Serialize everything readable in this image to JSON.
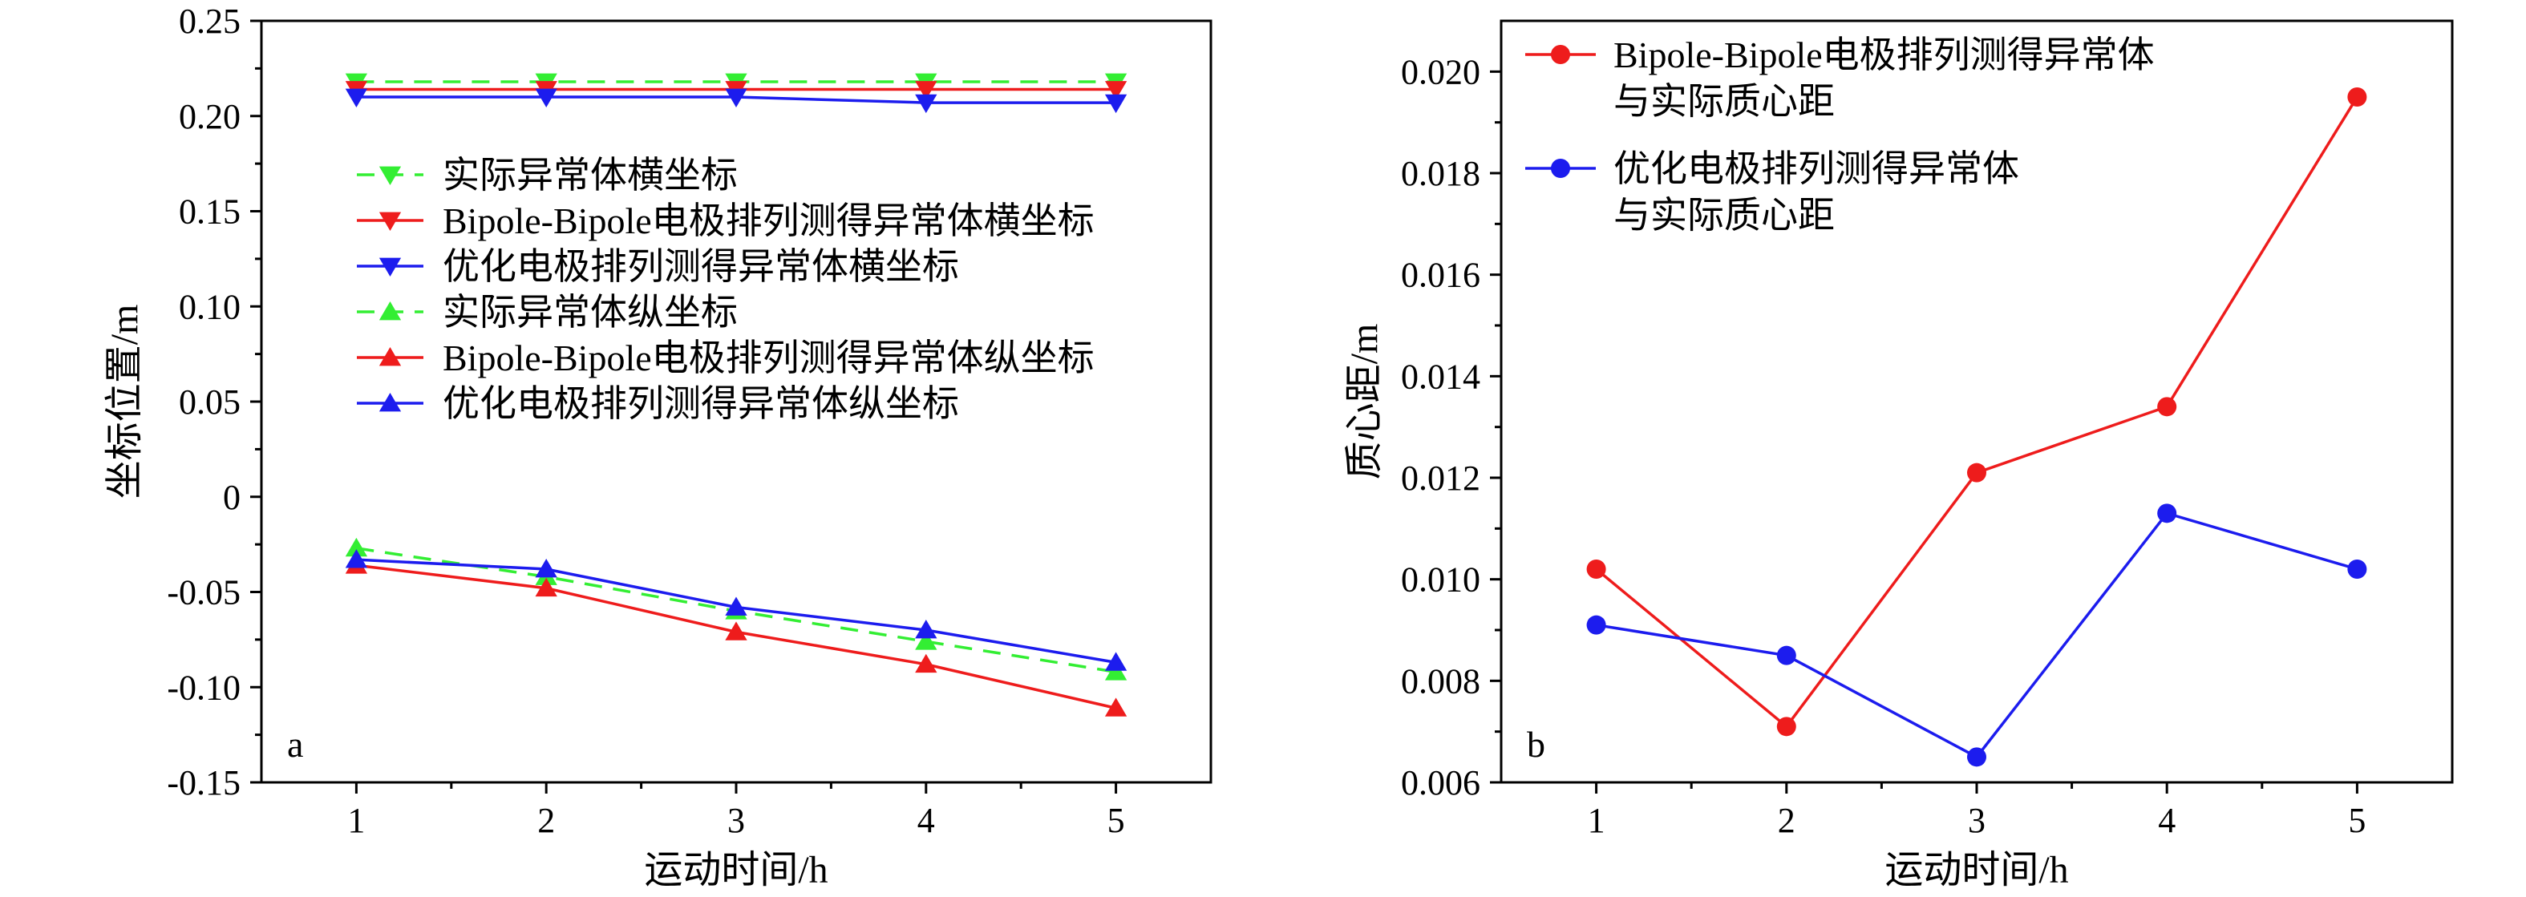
{
  "chart_data": [
    {
      "type": "line",
      "panel_label": "a",
      "xlabel": "运动时间/h",
      "ylabel": "坐标位置/m",
      "x": [
        1,
        2,
        3,
        4,
        5
      ],
      "xlim": [
        0.5,
        5.5
      ],
      "ylim": [
        -0.15,
        0.25
      ],
      "xticks": [
        "1",
        "2",
        "3",
        "4",
        "5"
      ],
      "yticks": [
        {
          "value": 0.25,
          "label": "0.25"
        },
        {
          "value": 0.2,
          "label": "0.20"
        },
        {
          "value": 0.15,
          "label": "0.15"
        },
        {
          "value": 0.1,
          "label": "0.10"
        },
        {
          "value": 0.05,
          "label": "0.05"
        },
        {
          "value": 0.0,
          "label": "0"
        },
        {
          "value": -0.05,
          "label": "-0.05"
        },
        {
          "value": -0.1,
          "label": "-0.10"
        },
        {
          "value": -0.15,
          "label": "-0.15"
        }
      ],
      "grid": false,
      "legend_position": "upper-middle",
      "series": [
        {
          "name": "实际异常体横坐标",
          "color": "#33ee33",
          "dash": true,
          "marker": "triangle-down",
          "values": [
            0.218,
            0.218,
            0.218,
            0.218,
            0.218
          ]
        },
        {
          "name": "Bipole-Bipole电极排列测得异常体横坐标",
          "color": "#ee1c1c",
          "dash": false,
          "marker": "triangle-down",
          "values": [
            0.214,
            0.214,
            0.214,
            0.214,
            0.214
          ]
        },
        {
          "name": "优化电极排列测得异常体横坐标",
          "color": "#1c1cee",
          "dash": false,
          "marker": "triangle-down",
          "values": [
            0.21,
            0.21,
            0.21,
            0.207,
            0.207
          ]
        },
        {
          "name": "实际异常体纵坐标",
          "color": "#33ee33",
          "dash": true,
          "marker": "triangle-up",
          "values": [
            -0.027,
            -0.042,
            -0.06,
            -0.076,
            -0.092
          ]
        },
        {
          "name": "Bipole-Bipole电极排列测得异常体纵坐标",
          "color": "#ee1c1c",
          "dash": false,
          "marker": "triangle-up",
          "values": [
            -0.036,
            -0.048,
            -0.071,
            -0.088,
            -0.111
          ]
        },
        {
          "name": "优化电极排列测得异常体纵坐标",
          "color": "#1c1cee",
          "dash": false,
          "marker": "triangle-up",
          "values": [
            -0.033,
            -0.038,
            -0.058,
            -0.07,
            -0.087
          ]
        }
      ]
    },
    {
      "type": "line",
      "panel_label": "b",
      "xlabel": "运动时间/h",
      "ylabel": "质心距/m",
      "x": [
        1,
        2,
        3,
        4,
        5
      ],
      "xlim": [
        0.5,
        5.5
      ],
      "ylim": [
        0.006,
        0.021
      ],
      "xticks": [
        "1",
        "2",
        "3",
        "4",
        "5"
      ],
      "yticks": [
        {
          "value": 0.02,
          "label": "0.020"
        },
        {
          "value": 0.018,
          "label": "0.018"
        },
        {
          "value": 0.016,
          "label": "0.016"
        },
        {
          "value": 0.014,
          "label": "0.014"
        },
        {
          "value": 0.012,
          "label": "0.012"
        },
        {
          "value": 0.01,
          "label": "0.010"
        },
        {
          "value": 0.008,
          "label": "0.008"
        },
        {
          "value": 0.006,
          "label": "0.006"
        }
      ],
      "grid": false,
      "legend_position": "top-left",
      "series": [
        {
          "name_lines": [
            "Bipole-Bipole电极排列测得异常体",
            "与实际质心距"
          ],
          "color": "#ee1c1c",
          "marker": "circle",
          "values": [
            0.0102,
            0.0071,
            0.0121,
            0.0134,
            0.0195
          ]
        },
        {
          "name_lines": [
            "优化电极排列测得异常体",
            "与实际质心距"
          ],
          "color": "#1c1cee",
          "marker": "circle",
          "values": [
            0.0091,
            0.0085,
            0.0065,
            0.0113,
            0.0102
          ]
        }
      ]
    }
  ]
}
